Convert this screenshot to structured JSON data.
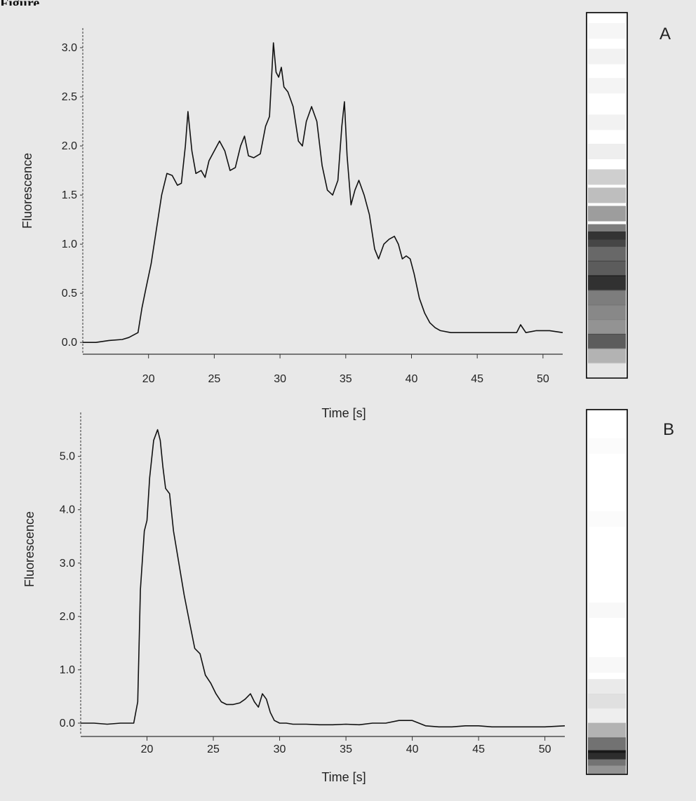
{
  "figure": {
    "label": "Figure"
  },
  "chart_data": [
    {
      "type": "line",
      "panel_label": "A",
      "xlabel": "Time [s]",
      "ylabel": "Fluorescence",
      "xlim": [
        15,
        51.5
      ],
      "ylim": [
        -0.12,
        3.2
      ],
      "xticks": [
        20,
        25,
        30,
        35,
        40,
        45,
        50
      ],
      "yticks": [
        0.0,
        0.5,
        1.0,
        1.5,
        2.0,
        2.5,
        3.0
      ],
      "ytick_labels": [
        "0.0",
        "0.5",
        "1.0",
        "1.5",
        "2.0",
        "2.5",
        "3.0"
      ],
      "grid": false,
      "x": [
        15.0,
        16.0,
        17.0,
        18.0,
        18.5,
        19.2,
        19.5,
        19.8,
        20.2,
        20.6,
        21.0,
        21.4,
        21.8,
        22.2,
        22.5,
        22.8,
        23.0,
        23.3,
        23.6,
        24.0,
        24.3,
        24.6,
        25.0,
        25.4,
        25.8,
        26.2,
        26.6,
        27.0,
        27.3,
        27.6,
        28.0,
        28.5,
        28.9,
        29.2,
        29.5,
        29.7,
        29.9,
        30.1,
        30.3,
        30.6,
        31.0,
        31.4,
        31.7,
        32.0,
        32.4,
        32.8,
        33.2,
        33.6,
        34.0,
        34.4,
        34.7,
        34.9,
        35.1,
        35.4,
        35.7,
        36.0,
        36.4,
        36.8,
        37.2,
        37.5,
        37.9,
        38.3,
        38.7,
        39.0,
        39.3,
        39.6,
        39.9,
        40.2,
        40.6,
        41.0,
        41.4,
        41.8,
        42.2,
        43.0,
        44.0,
        45.0,
        46.0,
        47.0,
        48.0,
        48.3,
        48.7,
        49.5,
        50.5,
        51.5
      ],
      "y": [
        0.0,
        0.0,
        0.02,
        0.03,
        0.05,
        0.1,
        0.35,
        0.55,
        0.8,
        1.15,
        1.5,
        1.72,
        1.7,
        1.6,
        1.62,
        2.0,
        2.35,
        1.95,
        1.72,
        1.75,
        1.68,
        1.85,
        1.95,
        2.05,
        1.95,
        1.75,
        1.78,
        2.0,
        2.1,
        1.9,
        1.88,
        1.92,
        2.2,
        2.3,
        3.05,
        2.75,
        2.7,
        2.8,
        2.6,
        2.55,
        2.4,
        2.05,
        2.0,
        2.25,
        2.4,
        2.25,
        1.8,
        1.55,
        1.5,
        1.65,
        2.2,
        2.45,
        1.9,
        1.4,
        1.55,
        1.65,
        1.5,
        1.3,
        0.95,
        0.85,
        1.0,
        1.05,
        1.08,
        1.0,
        0.85,
        0.88,
        0.85,
        0.7,
        0.45,
        0.3,
        0.2,
        0.15,
        0.12,
        0.1,
        0.1,
        0.1,
        0.1,
        0.1,
        0.1,
        0.18,
        0.1,
        0.12,
        0.12,
        0.1
      ]
    },
    {
      "type": "line",
      "panel_label": "B",
      "xlabel": "Time [s]",
      "ylabel": "Fluorescence",
      "xlim": [
        15,
        51.5
      ],
      "ylim": [
        -0.25,
        5.85
      ],
      "xticks": [
        20,
        25,
        30,
        35,
        40,
        45,
        50
      ],
      "yticks": [
        0.0,
        1.0,
        2.0,
        3.0,
        4.0,
        5.0
      ],
      "ytick_labels": [
        "0.0",
        "1.0",
        "2.0",
        "3.0",
        "4.0",
        "5.0"
      ],
      "grid": false,
      "x": [
        15.0,
        16.0,
        17.0,
        18.0,
        19.0,
        19.3,
        19.5,
        19.8,
        20.0,
        20.2,
        20.5,
        20.8,
        21.0,
        21.2,
        21.4,
        21.7,
        22.0,
        22.4,
        22.8,
        23.2,
        23.6,
        24.0,
        24.4,
        24.8,
        25.2,
        25.6,
        26.0,
        26.5,
        27.0,
        27.4,
        27.8,
        28.1,
        28.4,
        28.7,
        29.0,
        29.3,
        29.6,
        30.0,
        30.5,
        31.0,
        32.0,
        33.0,
        34.0,
        35.0,
        36.0,
        37.0,
        38.0,
        39.0,
        39.5,
        40.0,
        40.5,
        41.0,
        42.0,
        43.0,
        44.0,
        45.0,
        46.0,
        47.0,
        48.0,
        49.0,
        50.0,
        51.5
      ],
      "y": [
        0.0,
        0.0,
        -0.02,
        0.0,
        0.0,
        0.4,
        2.5,
        3.6,
        3.8,
        4.6,
        5.3,
        5.5,
        5.3,
        4.8,
        4.4,
        4.3,
        3.6,
        3.0,
        2.4,
        1.9,
        1.4,
        1.3,
        0.9,
        0.75,
        0.55,
        0.4,
        0.35,
        0.35,
        0.38,
        0.45,
        0.55,
        0.4,
        0.3,
        0.55,
        0.45,
        0.2,
        0.05,
        0.0,
        0.0,
        -0.02,
        -0.02,
        -0.03,
        -0.03,
        -0.02,
        -0.03,
        0.0,
        0.0,
        0.05,
        0.05,
        0.05,
        0.0,
        -0.05,
        -0.07,
        -0.07,
        -0.05,
        -0.05,
        -0.07,
        -0.07,
        -0.07,
        -0.07,
        -0.07,
        -0.05
      ]
    }
  ],
  "gel_lanes": [
    {
      "panel": "A",
      "bands": [
        {
          "pos": 0.05,
          "int": 0.04
        },
        {
          "pos": 0.12,
          "int": 0.06
        },
        {
          "pos": 0.2,
          "int": 0.05
        },
        {
          "pos": 0.3,
          "int": 0.06
        },
        {
          "pos": 0.38,
          "int": 0.08
        },
        {
          "pos": 0.45,
          "int": 0.22
        },
        {
          "pos": 0.5,
          "int": 0.3
        },
        {
          "pos": 0.55,
          "int": 0.45
        },
        {
          "pos": 0.6,
          "int": 0.6
        },
        {
          "pos": 0.62,
          "int": 0.85
        },
        {
          "pos": 0.66,
          "int": 0.7
        },
        {
          "pos": 0.7,
          "int": 0.75
        },
        {
          "pos": 0.74,
          "int": 0.95
        },
        {
          "pos": 0.78,
          "int": 0.6
        },
        {
          "pos": 0.82,
          "int": 0.55
        },
        {
          "pos": 0.86,
          "int": 0.5
        },
        {
          "pos": 0.9,
          "int": 0.75
        },
        {
          "pos": 0.94,
          "int": 0.35
        },
        {
          "pos": 0.98,
          "int": 0.12
        }
      ]
    },
    {
      "panel": "B",
      "bands": [
        {
          "pos": 0.1,
          "int": 0.02
        },
        {
          "pos": 0.3,
          "int": 0.02
        },
        {
          "pos": 0.55,
          "int": 0.03
        },
        {
          "pos": 0.7,
          "int": 0.03
        },
        {
          "pos": 0.76,
          "int": 0.1
        },
        {
          "pos": 0.8,
          "int": 0.14
        },
        {
          "pos": 0.84,
          "int": 0.08
        },
        {
          "pos": 0.88,
          "int": 0.35
        },
        {
          "pos": 0.92,
          "int": 0.65
        },
        {
          "pos": 0.955,
          "int": 0.97
        },
        {
          "pos": 0.98,
          "int": 0.5
        }
      ]
    }
  ]
}
